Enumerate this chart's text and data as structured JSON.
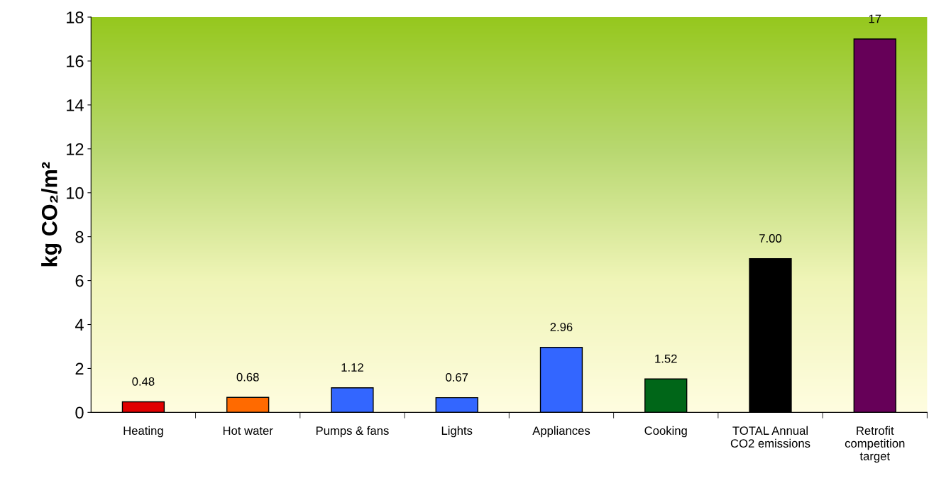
{
  "chart_data": {
    "type": "bar",
    "ylabel": "kg CO₂/m²",
    "categories": [
      "Heating",
      "Hot water",
      "Pumps & fans",
      "Lights",
      "Appliances",
      "Cooking",
      "TOTAL Annual\nCO2 emissions",
      "Retrofit\ncompetition\ntarget"
    ],
    "values": [
      0.48,
      0.68,
      1.12,
      0.67,
      2.96,
      1.52,
      7.0,
      17
    ],
    "value_labels": [
      "0.48",
      "0.68",
      "1.12",
      "0.67",
      "2.96",
      "1.52",
      "7.00",
      "17"
    ],
    "colors": [
      "#e00000",
      "#ff6a00",
      "#3366ff",
      "#3366ff",
      "#3366ff",
      "#006618",
      "#000000",
      "#660058"
    ],
    "ylim": [
      0,
      18
    ],
    "yticks": [
      0,
      2,
      4,
      6,
      8,
      10,
      12,
      14,
      16,
      18
    ],
    "grid": false,
    "legend": false
  }
}
